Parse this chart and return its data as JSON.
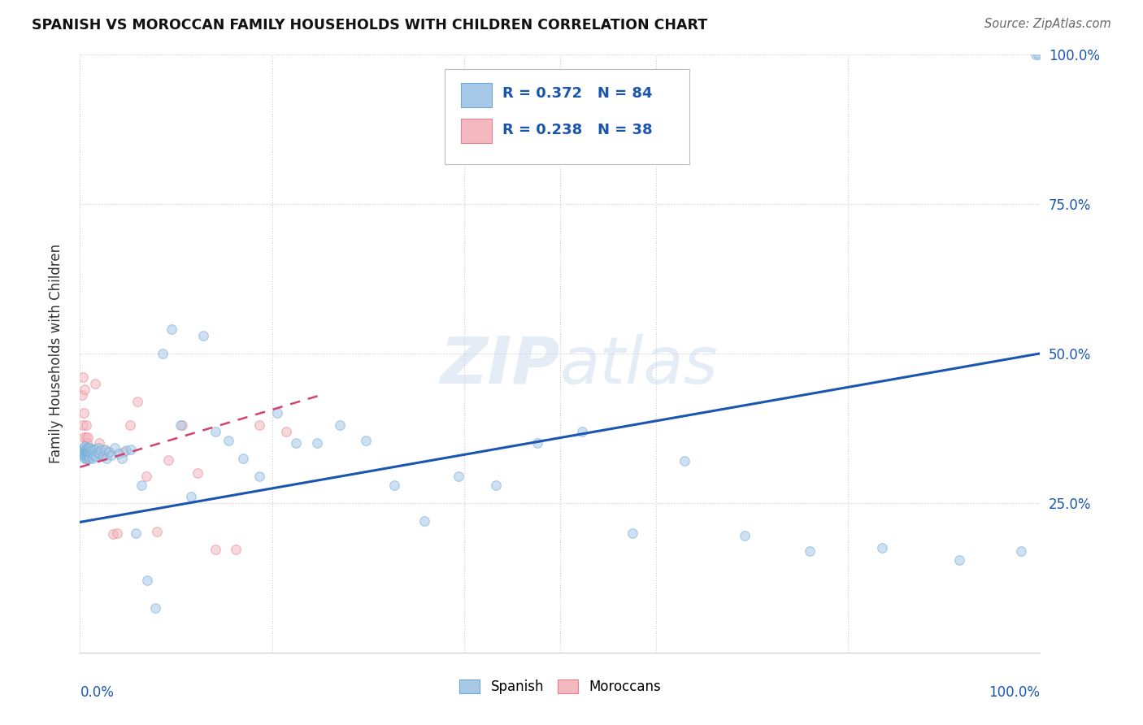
{
  "title": "SPANISH VS MOROCCAN FAMILY HOUSEHOLDS WITH CHILDREN CORRELATION CHART",
  "source": "Source: ZipAtlas.com",
  "ylabel": "Family Households with Children",
  "watermark": "ZIPatlas",
  "xlim": [
    0.0,
    1.0
  ],
  "ylim": [
    0.0,
    1.0
  ],
  "spanish_color": "#a8c8e8",
  "spanish_edge": "#6aaad4",
  "moroccan_color": "#f4b8c0",
  "moroccan_edge": "#e8808c",
  "trend_spanish_color": "#1a56b0",
  "trend_moroccan_color": "#d44070",
  "trend_moroccan_dash_color": "#bbbbbb",
  "background_color": "#ffffff",
  "grid_color": "#cccccc",
  "marker_size": 70,
  "marker_alpha": 0.55,
  "marker_linewidth": 0.8,
  "spanish_x": [
    0.002,
    0.003,
    0.003,
    0.004,
    0.004,
    0.004,
    0.005,
    0.005,
    0.005,
    0.005,
    0.006,
    0.006,
    0.006,
    0.006,
    0.007,
    0.007,
    0.007,
    0.007,
    0.008,
    0.008,
    0.008,
    0.008,
    0.009,
    0.009,
    0.009,
    0.01,
    0.01,
    0.01,
    0.011,
    0.011,
    0.012,
    0.012,
    0.013,
    0.013,
    0.014,
    0.015,
    0.016,
    0.017,
    0.018,
    0.019,
    0.02,
    0.022,
    0.024,
    0.026,
    0.028,
    0.03,
    0.033,
    0.036,
    0.04,
    0.044,
    0.048,
    0.053,
    0.058,
    0.064,
    0.07,
    0.078,
    0.086,
    0.095,
    0.105,
    0.116,
    0.128,
    0.141,
    0.155,
    0.17,
    0.187,
    0.205,
    0.225,
    0.247,
    0.271,
    0.298,
    0.327,
    0.359,
    0.394,
    0.433,
    0.476,
    0.523,
    0.575,
    0.63,
    0.692,
    0.76,
    0.835,
    0.916,
    0.98,
    0.995,
    0.998
  ],
  "spanish_y": [
    0.335,
    0.33,
    0.34,
    0.328,
    0.336,
    0.342,
    0.33,
    0.338,
    0.325,
    0.345,
    0.332,
    0.34,
    0.325,
    0.335,
    0.33,
    0.338,
    0.342,
    0.328,
    0.335,
    0.325,
    0.34,
    0.332,
    0.328,
    0.342,
    0.336,
    0.33,
    0.338,
    0.325,
    0.335,
    0.342,
    0.328,
    0.34,
    0.332,
    0.325,
    0.338,
    0.33,
    0.34,
    0.328,
    0.335,
    0.342,
    0.332,
    0.338,
    0.328,
    0.34,
    0.325,
    0.335,
    0.33,
    0.342,
    0.332,
    0.325,
    0.338,
    0.34,
    0.2,
    0.28,
    0.12,
    0.075,
    0.5,
    0.54,
    0.38,
    0.26,
    0.53,
    0.37,
    0.355,
    0.325,
    0.295,
    0.4,
    0.35,
    0.35,
    0.38,
    0.355,
    0.28,
    0.22,
    0.295,
    0.28,
    0.35,
    0.37,
    0.2,
    0.32,
    0.195,
    0.17,
    0.175,
    0.155,
    0.17,
    1.0,
    1.0
  ],
  "moroccan_x": [
    0.002,
    0.003,
    0.003,
    0.004,
    0.004,
    0.005,
    0.005,
    0.006,
    0.006,
    0.007,
    0.007,
    0.008,
    0.008,
    0.009,
    0.01,
    0.011,
    0.012,
    0.014,
    0.016,
    0.018,
    0.02,
    0.023,
    0.026,
    0.03,
    0.034,
    0.039,
    0.045,
    0.052,
    0.06,
    0.069,
    0.08,
    0.092,
    0.106,
    0.122,
    0.141,
    0.162,
    0.187,
    0.215
  ],
  "moroccan_y": [
    0.43,
    0.46,
    0.38,
    0.36,
    0.4,
    0.44,
    0.34,
    0.36,
    0.38,
    0.335,
    0.35,
    0.34,
    0.36,
    0.335,
    0.338,
    0.34,
    0.332,
    0.33,
    0.45,
    0.335,
    0.35,
    0.33,
    0.338,
    0.335,
    0.198,
    0.2,
    0.335,
    0.38,
    0.42,
    0.295,
    0.202,
    0.322,
    0.38,
    0.3,
    0.172,
    0.172,
    0.38,
    0.37
  ],
  "sp_trend_x0": 0.0,
  "sp_trend_y0": 0.218,
  "sp_trend_x1": 1.0,
  "sp_trend_y1": 0.5,
  "mor_trend_x0": 0.0,
  "mor_trend_y0": 0.31,
  "mor_trend_x1": 0.25,
  "mor_trend_y1": 0.43
}
